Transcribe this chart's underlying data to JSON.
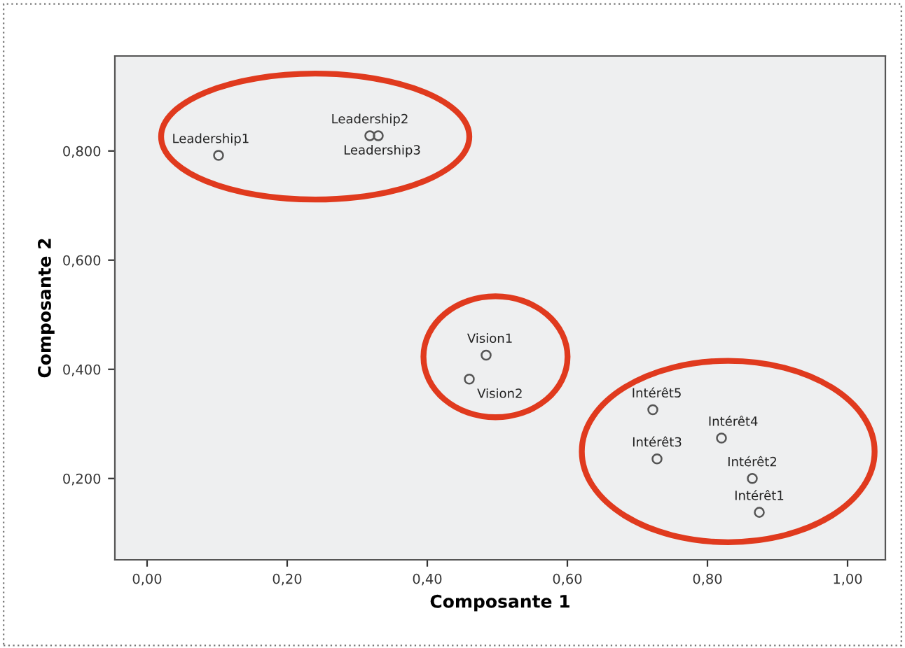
{
  "chart_data": {
    "type": "scatter",
    "xlabel": "Composante 1",
    "ylabel": "Composante 2",
    "xlim": [
      -0.046,
      1.054
    ],
    "ylim": [
      0.051,
      0.974
    ],
    "xticks": [
      {
        "value": 0,
        "label": "0,00"
      },
      {
        "value": 0.2,
        "label": "0,20"
      },
      {
        "value": 0.4,
        "label": "0,40"
      },
      {
        "value": 0.6,
        "label": "0,60"
      },
      {
        "value": 0.8,
        "label": "0,80"
      },
      {
        "value": 1.0,
        "label": "1,00"
      }
    ],
    "yticks": [
      {
        "value": 0.2,
        "label": "0,200"
      },
      {
        "value": 0.4,
        "label": "0,400"
      },
      {
        "value": 0.6,
        "label": "0,600"
      },
      {
        "value": 0.8,
        "label": "0,800"
      }
    ],
    "grid": false,
    "legend": false,
    "marker": "circle",
    "series": [
      {
        "color": "#555555",
        "x": [
          0.102,
          0.318,
          0.33,
          0.484,
          0.46,
          0.722,
          0.82,
          0.728,
          0.864,
          0.874
        ],
        "values": [
          0.792,
          0.828,
          0.828,
          0.426,
          0.382,
          0.326,
          0.274,
          0.236,
          0.2,
          0.138
        ]
      }
    ],
    "annotations": [
      {
        "text": "Leadership1",
        "x": 0.102,
        "y": 0.792
      },
      {
        "text": "Leadership2",
        "x": 0.318,
        "y": 0.828
      },
      {
        "text": "Leadership3",
        "x": 0.33,
        "y": 0.828
      },
      {
        "text": "Vision1",
        "x": 0.484,
        "y": 0.426
      },
      {
        "text": "Vision2",
        "x": 0.46,
        "y": 0.382
      },
      {
        "text": "Intérêt5",
        "x": 0.722,
        "y": 0.326
      },
      {
        "text": "Intérêt4",
        "x": 0.82,
        "y": 0.274
      },
      {
        "text": "Intérêt3",
        "x": 0.728,
        "y": 0.236
      },
      {
        "text": "Intérêt2",
        "x": 0.864,
        "y": 0.2
      },
      {
        "text": "Intérêt1",
        "x": 0.874,
        "y": 0.138
      }
    ]
  }
}
